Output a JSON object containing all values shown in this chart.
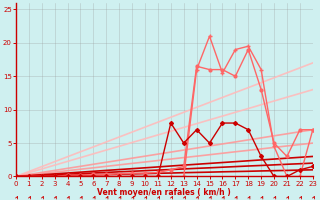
{
  "xlabel": "Vent moyen/en rafales ( km/h )",
  "x": [
    0,
    1,
    2,
    3,
    4,
    5,
    6,
    7,
    8,
    9,
    10,
    11,
    12,
    13,
    14,
    15,
    16,
    17,
    18,
    19,
    20,
    21,
    22,
    23
  ],
  "lines": [
    {
      "y": [
        0,
        0.74,
        1.48,
        2.22,
        2.96,
        3.7,
        4.43,
        5.17,
        5.91,
        6.65,
        7.39,
        8.13,
        8.87,
        9.61,
        10.35,
        11.09,
        11.83,
        12.57,
        13.3,
        14.04,
        14.78,
        15.52,
        16.26,
        17.0
      ],
      "color": "#ffbbbb",
      "linewidth": 1.2,
      "marker": null,
      "markersize": 0,
      "alpha": 0.9
    },
    {
      "y": [
        0,
        0.57,
        1.13,
        1.7,
        2.26,
        2.83,
        3.39,
        3.96,
        4.52,
        5.09,
        5.65,
        6.22,
        6.78,
        7.35,
        7.91,
        8.48,
        9.04,
        9.61,
        10.17,
        10.74,
        11.3,
        11.87,
        12.43,
        13.0
      ],
      "color": "#ffbbbb",
      "linewidth": 1.2,
      "marker": null,
      "markersize": 0,
      "alpha": 0.9
    },
    {
      "y": [
        0,
        0.3,
        0.61,
        0.91,
        1.22,
        1.52,
        1.83,
        2.13,
        2.43,
        2.74,
        3.04,
        3.35,
        3.65,
        3.96,
        4.26,
        4.57,
        4.87,
        5.17,
        5.48,
        5.78,
        6.09,
        6.39,
        6.7,
        7.0
      ],
      "color": "#ff9999",
      "linewidth": 1.2,
      "marker": null,
      "markersize": 0,
      "alpha": 0.9
    },
    {
      "y": [
        0,
        0.22,
        0.43,
        0.65,
        0.87,
        1.09,
        1.3,
        1.52,
        1.74,
        1.96,
        2.17,
        2.39,
        2.61,
        2.83,
        3.04,
        3.26,
        3.48,
        3.7,
        3.91,
        4.13,
        4.35,
        4.57,
        4.78,
        5.0
      ],
      "color": "#ff9999",
      "linewidth": 1.2,
      "marker": null,
      "markersize": 0,
      "alpha": 0.9
    },
    {
      "y": [
        0,
        0.13,
        0.26,
        0.39,
        0.52,
        0.65,
        0.78,
        0.91,
        1.04,
        1.17,
        1.3,
        1.43,
        1.57,
        1.7,
        1.83,
        1.96,
        2.09,
        2.22,
        2.35,
        2.48,
        2.61,
        2.74,
        2.87,
        3.0
      ],
      "color": "#cc0000",
      "linewidth": 1.2,
      "marker": null,
      "markersize": 0,
      "alpha": 1.0
    },
    {
      "y": [
        0,
        0.087,
        0.174,
        0.26,
        0.35,
        0.43,
        0.52,
        0.61,
        0.7,
        0.78,
        0.87,
        0.96,
        1.04,
        1.13,
        1.22,
        1.3,
        1.39,
        1.48,
        1.57,
        1.65,
        1.74,
        1.83,
        1.91,
        2.0
      ],
      "color": "#cc0000",
      "linewidth": 1.2,
      "marker": null,
      "markersize": 0,
      "alpha": 1.0
    },
    {
      "y": [
        0,
        0.043,
        0.087,
        0.13,
        0.17,
        0.22,
        0.26,
        0.3,
        0.35,
        0.39,
        0.43,
        0.48,
        0.52,
        0.57,
        0.61,
        0.65,
        0.7,
        0.74,
        0.78,
        0.83,
        0.87,
        0.91,
        0.96,
        1.0
      ],
      "color": "#cc0000",
      "linewidth": 1.2,
      "marker": null,
      "markersize": 0,
      "alpha": 1.0
    },
    {
      "y": [
        0,
        0,
        0,
        0,
        0.2,
        0.2,
        0.3,
        0.3,
        0.4,
        0.5,
        0.5,
        0.6,
        1.0,
        1.5,
        16.5,
        16.0,
        16.0,
        15.0,
        19.0,
        13.0,
        5.0,
        3.0,
        7.0,
        7.0
      ],
      "color": "#ff6666",
      "linewidth": 1.0,
      "marker": "o",
      "markersize": 2.0,
      "alpha": 1.0
    },
    {
      "y": [
        0,
        0,
        0,
        0,
        0,
        0,
        0,
        0,
        0,
        0,
        0,
        0,
        0,
        0,
        16.0,
        21.0,
        15.5,
        19.0,
        19.5,
        16.0,
        4.5,
        0,
        0,
        7.0
      ],
      "color": "#ff6666",
      "linewidth": 1.0,
      "marker": "+",
      "markersize": 3.5,
      "alpha": 1.0
    },
    {
      "y": [
        0,
        0,
        0,
        0,
        0,
        0,
        0,
        0,
        0,
        0,
        0,
        0,
        8.0,
        5.0,
        7.0,
        5.0,
        8.0,
        8.0,
        7.0,
        3.0,
        0,
        0,
        1.0,
        1.5
      ],
      "color": "#cc0000",
      "linewidth": 1.0,
      "marker": "D",
      "markersize": 2.0,
      "alpha": 1.0
    }
  ],
  "ylim": [
    0,
    26
  ],
  "xlim": [
    0,
    23
  ],
  "yticks": [
    0,
    5,
    10,
    15,
    20,
    25
  ],
  "xticks": [
    0,
    1,
    2,
    3,
    4,
    5,
    6,
    7,
    8,
    9,
    10,
    11,
    12,
    13,
    14,
    15,
    16,
    17,
    18,
    19,
    20,
    21,
    22,
    23
  ],
  "bg_color": "#cff0f0",
  "grid_color": "#999999",
  "tick_color": "#cc0000",
  "label_color": "#cc0000",
  "axis_spine_color": "#cc0000"
}
